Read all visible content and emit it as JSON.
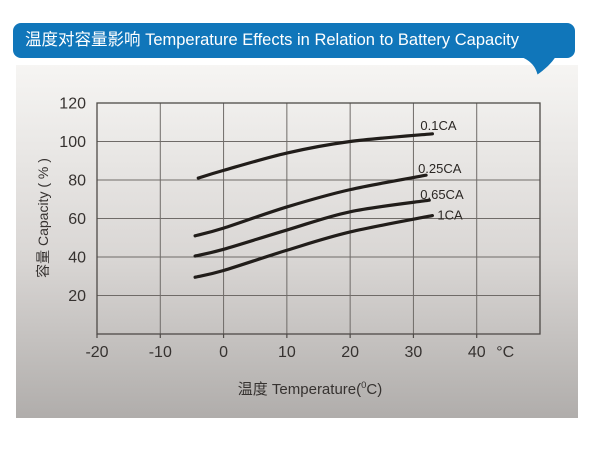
{
  "header": {
    "title": "温度对容量影响 Temperature Effects in Relation to Battery Capacity"
  },
  "colors": {
    "banner_bg": "#1076ba",
    "banner_text": "#ffffff",
    "panel_top": "#f6f5f3",
    "panel_mid": "#d9d6d4",
    "panel_bottom": "#b0adab",
    "grid": "#6f6b68",
    "plot_border": "#4e4a47",
    "curve": "#211d1a",
    "text": "#363230",
    "page_bg": "#ffffff"
  },
  "chart_data": {
    "type": "line",
    "title": "温度对容量影响 Temperature Effects in Relation to Battery Capacity",
    "xlabel_prefix": "温度  Temperature(",
    "xlabel_sup": "0",
    "xlabel_suffix": "C)",
    "ylabel": "容量 Capacity ( % )",
    "xlim": [
      -20,
      50
    ],
    "ylim": [
      0,
      120
    ],
    "x_ticks": [
      -20,
      -10,
      0,
      10,
      20,
      30,
      40
    ],
    "x_unit_label": "°C",
    "x_unit_position": 44.5,
    "y_ticks": [
      20,
      40,
      60,
      80,
      100,
      120
    ],
    "x_grid_step": 10,
    "y_grid_step": 20,
    "grid": true,
    "legend_position": "inline-end-of-curve",
    "series": [
      {
        "name": "0.1CA",
        "points": [
          [
            -4,
            81
          ],
          [
            0,
            85
          ],
          [
            10,
            94
          ],
          [
            20,
            100
          ],
          [
            33,
            104
          ]
        ]
      },
      {
        "name": "0.25CA",
        "points": [
          [
            -4.5,
            51
          ],
          [
            0,
            55
          ],
          [
            10,
            66
          ],
          [
            20,
            75
          ],
          [
            32,
            82.5
          ]
        ]
      },
      {
        "name": "0.65CA",
        "points": [
          [
            -4.5,
            40.5
          ],
          [
            0,
            44
          ],
          [
            10,
            54
          ],
          [
            20,
            63.5
          ],
          [
            32.5,
            69.5
          ]
        ]
      },
      {
        "name": "1CA",
        "points": [
          [
            -4.5,
            29.5
          ],
          [
            0,
            33
          ],
          [
            10,
            43.5
          ],
          [
            20,
            53
          ],
          [
            33,
            61.5
          ]
        ]
      }
    ]
  }
}
